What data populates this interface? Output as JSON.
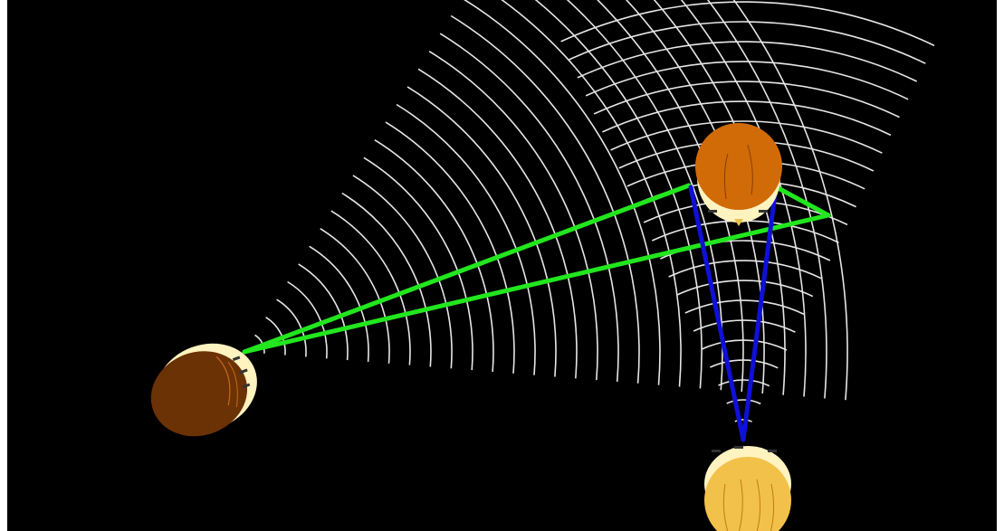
{
  "scene": {
    "background_color": "#000000",
    "frame_color": "#ffffff",
    "wave_color": "#e6e6e6",
    "sight_line_green": "#22e61e",
    "sight_line_blue": "#1010d8"
  },
  "heads": [
    {
      "id": "left-observer",
      "hair_color": "#6b3206",
      "skin_color": "#fff3c0"
    },
    {
      "id": "top-right-observer",
      "hair_color": "#d06b08",
      "skin_color": "#fff3c0"
    },
    {
      "id": "bottom-observer",
      "hair_color": "#f2c14a",
      "skin_color": "#fff3c0"
    }
  ],
  "icons": {
    "left_head": "head-top-view-icon",
    "right_head": "head-top-view-icon",
    "bottom_head": "head-top-view-icon"
  }
}
